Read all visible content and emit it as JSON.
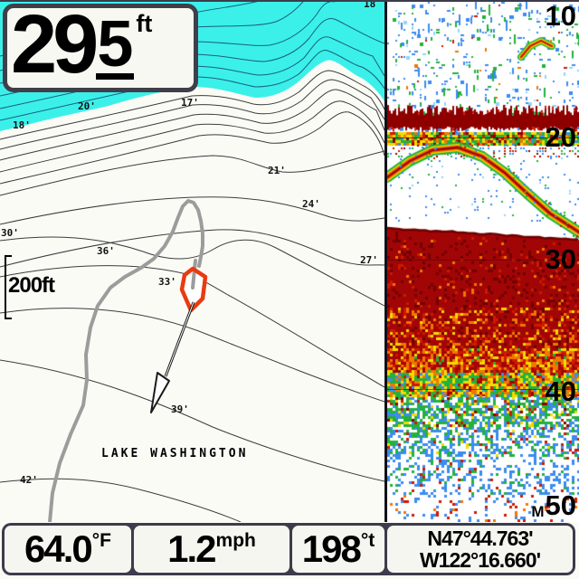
{
  "depth_display": {
    "value": "29",
    "decimal": "5",
    "unit": "ft"
  },
  "map": {
    "lake_label": "LAKE WASHINGTON",
    "scale_label": "200ft",
    "contour_labels": [
      {
        "text": "18"
      },
      {
        "text": "18'"
      },
      {
        "text": "20'"
      },
      {
        "text": "17'"
      },
      {
        "text": "21'"
      },
      {
        "text": "24'"
      },
      {
        "text": "27'"
      },
      {
        "text": "30'"
      },
      {
        "text": "36'"
      },
      {
        "text": "33'"
      },
      {
        "text": "39'"
      },
      {
        "text": "42'"
      }
    ]
  },
  "sonar": {
    "depth_labels": [
      "10",
      "20",
      "30",
      "40",
      "50"
    ],
    "unit_prefix": "M"
  },
  "status_bar": {
    "temperature": {
      "value": "64.0",
      "unit": "°F"
    },
    "speed": {
      "value": "1.2",
      "unit": "mph"
    },
    "heading": {
      "value": "198",
      "unit": "°t"
    },
    "position": {
      "lat": "N47°44.763'",
      "lon": "W122°16.660'"
    }
  },
  "colors": {
    "frame": "#3c3c4c",
    "cyan_water": "#3bf0e9",
    "boat": "#e83b10",
    "track": "#9c9c9c",
    "sonar": {
      "blue": "#3a8cf0",
      "lightblue": "#8fd8f8",
      "green": "#22b23a",
      "yellow": "#f2dc00",
      "orange": "#f07800",
      "red": "#cc1a00",
      "darkred": "#8e0000",
      "darker": "#700000",
      "base": "#a20505"
    }
  }
}
